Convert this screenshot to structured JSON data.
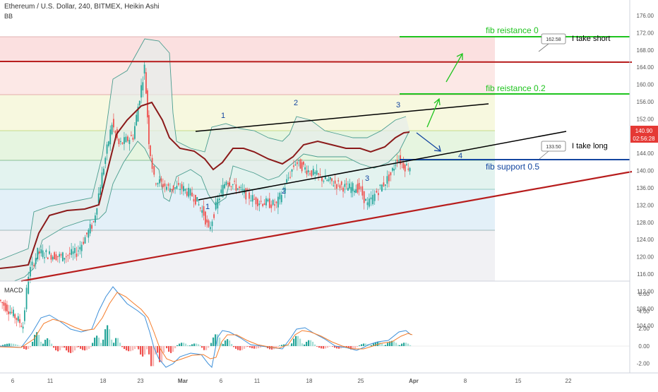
{
  "header": {
    "title": "Ethereum / U.S. Dollar, 240, BITMEX, Heikin Ashi",
    "indicator": "BB"
  },
  "macd": {
    "label": "MACD",
    "ticks": [
      "6.00",
      "4.00",
      "2.00",
      "0.00",
      "-2.00"
    ]
  },
  "price_axis": {
    "ticks": [
      "176.00",
      "172.00",
      "168.00",
      "164.00",
      "160.00",
      "156.00",
      "152.00",
      "148.00",
      "144.00",
      "140.00",
      "136.00",
      "132.00",
      "128.00",
      "124.00",
      "120.00",
      "116.00",
      "112.00",
      "108.00",
      "104.00"
    ],
    "last_price": "140.90",
    "countdown": "02:56:28",
    "last_price_color": "#e53935"
  },
  "time_axis": {
    "ticks": [
      "6",
      "11",
      "18",
      "23",
      "Mar",
      "6",
      "11",
      "18",
      "25",
      "Apr",
      "8",
      "15",
      "22"
    ]
  },
  "annotations": {
    "fib_resistance_0": "fib reistance 0",
    "fib_resistance_02": "fib reistance 0.2",
    "fib_support_05": "fib support 0.5",
    "take_short": "I take short",
    "take_long": "I take long",
    "price_tag_short": "162.58",
    "price_tag_long": "133.50",
    "wave_top_1": "1",
    "wave_top_2": "2",
    "wave_top_3": "3",
    "wave_bot_1": "1",
    "wave_bot_2": "2",
    "wave_bot_3": "3",
    "wave_4": "4"
  },
  "colors": {
    "bull": "#26a69a",
    "bear": "#ef5350",
    "fib_green": "#1ec41e",
    "fib_blue": "#1446a0",
    "trend_red": "#b71c1c",
    "sma": "#8b1a1a"
  },
  "chart_data": {
    "type": "line",
    "symbol": "ETHUSD",
    "ylim": [
      100,
      178
    ],
    "x_dates": [
      "Feb 6",
      "Feb 11",
      "Feb 18",
      "Feb 23",
      "Mar 1",
      "Mar 6",
      "Mar 11",
      "Mar 18",
      "Mar 25",
      "Apr 1",
      "Apr 8",
      "Apr 15",
      "Apr 22"
    ],
    "series": [
      {
        "x": [
          "Feb 3",
          "Feb 5",
          "Feb 7",
          "Feb 8",
          "Feb 10",
          "Feb 13",
          "Feb 15",
          "Feb 17",
          "Feb 18",
          "Feb 19",
          "Feb 20",
          "Feb 22",
          "Feb 23",
          "Feb 24",
          "Feb 25",
          "Feb 27",
          "Mar 1",
          "Mar 3",
          "Mar 4",
          "Mar 5",
          "Mar 6",
          "Mar 7",
          "Mar 9",
          "Mar 11",
          "Mar 13",
          "Mar 14",
          "Mar 15",
          "Mar 17",
          "Mar 19",
          "Mar 21",
          "Mar 23",
          "Mar 25",
          "Mar 26",
          "Mar 28",
          "Mar 29",
          "Mar 30",
          "Mar 31"
        ],
        "y": [
          110,
          107,
          104,
          116,
          121,
          120,
          121,
          128,
          139,
          151,
          146,
          148,
          164,
          147,
          138,
          136,
          136,
          134,
          130,
          126,
          133,
          138,
          135,
          133,
          132,
          142,
          140,
          138,
          137,
          136,
          136,
          132,
          135,
          139,
          143,
          141,
          141
        ]
      }
    ],
    "fib_levels": [
      {
        "label": "fib reistance 0",
        "price": 168.2
      },
      {
        "label": "fib reistance 0.2",
        "price": 150.6
      },
      {
        "label": "fib support 0.5",
        "price": 133.0
      }
    ],
    "horizontal_lines": [
      168.2,
      159.6,
      150.6,
      141.5,
      133.0,
      125.4,
      114.2
    ],
    "trendlines": [
      {
        "from": [
          "Mar 3",
          142
        ],
        "to": [
          "Apr 9",
          148.5
        ]
      },
      {
        "from": [
          "Mar 3",
          123
        ],
        "to": [
          "Apr 9",
          141.5
        ]
      },
      {
        "from": [
          "Feb 6",
          102
        ],
        "to": [
          "Apr 27",
          129.5
        ]
      }
    ],
    "price_tags": [
      162.58,
      133.5
    ],
    "last_price": 140.9,
    "macd_ylim": [
      -3,
      7
    ]
  }
}
